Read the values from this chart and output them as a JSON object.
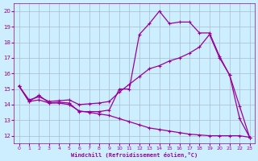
{
  "xlabel": "Windchill (Refroidissement éolien,°C)",
  "bg_color": "#cceeff",
  "line_color": "#990099",
  "grid_color": "#aabbcc",
  "x_ticks": [
    0,
    1,
    2,
    3,
    4,
    5,
    6,
    7,
    8,
    9,
    10,
    11,
    12,
    13,
    14,
    15,
    16,
    17,
    18,
    19,
    20,
    21,
    22,
    23
  ],
  "y_ticks": [
    12,
    13,
    14,
    15,
    16,
    17,
    18,
    19,
    20
  ],
  "ylim": [
    11.5,
    20.5
  ],
  "xlim": [
    -0.5,
    23.5
  ],
  "line1_x": [
    0,
    1,
    2,
    3,
    4,
    5,
    6,
    7,
    8,
    9,
    10,
    11,
    12,
    13,
    14,
    15,
    16,
    17,
    18,
    19,
    20,
    21,
    22,
    23
  ],
  "line1_y": [
    15.2,
    14.2,
    14.6,
    14.1,
    14.15,
    14.1,
    13.55,
    13.55,
    13.55,
    13.65,
    15.0,
    15.0,
    18.5,
    19.2,
    20.0,
    19.2,
    19.3,
    19.3,
    18.6,
    18.6,
    17.1,
    15.9,
    13.9,
    11.9
  ],
  "line2_x": [
    0,
    1,
    2,
    3,
    4,
    5,
    6,
    7,
    8,
    9,
    10,
    11,
    12,
    13,
    14,
    15,
    16,
    17,
    18,
    19,
    20,
    21,
    22,
    23
  ],
  "line2_y": [
    15.2,
    14.3,
    14.5,
    14.2,
    14.25,
    14.3,
    14.0,
    14.05,
    14.1,
    14.2,
    14.8,
    15.3,
    15.8,
    16.3,
    16.5,
    16.8,
    17.0,
    17.3,
    17.7,
    18.5,
    17.0,
    15.9,
    13.1,
    11.9
  ],
  "line3_x": [
    0,
    1,
    2,
    3,
    4,
    5,
    6,
    7,
    8,
    9,
    10,
    11,
    12,
    13,
    14,
    15,
    16,
    17,
    18,
    19,
    20,
    21,
    22,
    23
  ],
  "line3_y": [
    15.2,
    14.2,
    14.3,
    14.1,
    14.1,
    14.0,
    13.6,
    13.5,
    13.4,
    13.3,
    13.1,
    12.9,
    12.7,
    12.5,
    12.4,
    12.3,
    12.2,
    12.1,
    12.05,
    12.0,
    12.0,
    12.0,
    12.0,
    11.9
  ]
}
